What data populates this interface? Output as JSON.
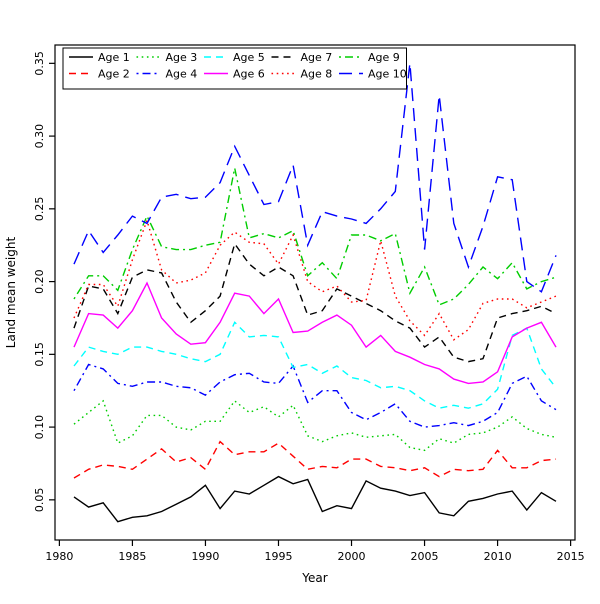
{
  "figure": {
    "background": "#ffffff",
    "axis_color": "#000000"
  },
  "chart_data": {
    "type": "line",
    "title": "",
    "xlabel": "Year",
    "ylabel": "Land mean weight",
    "grid": false,
    "legend_position": "top-left",
    "xlim": [
      1979.7,
      2015.3
    ],
    "ylim": [
      0.0224,
      0.3626
    ],
    "x_ticks": [
      1980,
      1985,
      1990,
      1995,
      2000,
      2005,
      2010,
      2015
    ],
    "y_ticks": [
      0.05,
      0.1,
      0.15,
      0.2,
      0.25,
      0.3,
      0.35
    ],
    "x": [
      1981,
      1982,
      1983,
      1984,
      1985,
      1986,
      1987,
      1988,
      1989,
      1990,
      1991,
      1992,
      1993,
      1994,
      1995,
      1996,
      1997,
      1998,
      1999,
      2000,
      2001,
      2002,
      2003,
      2004,
      2005,
      2006,
      2007,
      2008,
      2009,
      2010,
      2011,
      2012,
      2013,
      2014
    ],
    "series": [
      {
        "name": "Age 1",
        "color": "#000000",
        "dash": "solid",
        "values": [
          0.052,
          0.045,
          0.048,
          0.035,
          0.038,
          0.039,
          0.042,
          0.047,
          0.052,
          0.06,
          0.044,
          0.056,
          0.054,
          0.06,
          0.066,
          0.061,
          0.064,
          0.042,
          0.046,
          0.044,
          0.063,
          0.058,
          0.056,
          0.053,
          0.055,
          0.041,
          0.039,
          0.049,
          0.051,
          0.054,
          0.056,
          0.043,
          0.055,
          0.049
        ]
      },
      {
        "name": "Age 2",
        "color": "#FF0000",
        "dash": "dashed",
        "values": [
          0.065,
          0.071,
          0.074,
          0.073,
          0.071,
          0.078,
          0.085,
          0.076,
          0.079,
          0.071,
          0.09,
          0.081,
          0.083,
          0.083,
          0.089,
          0.08,
          0.071,
          0.073,
          0.072,
          0.078,
          0.078,
          0.073,
          0.072,
          0.07,
          0.072,
          0.066,
          0.071,
          0.07,
          0.071,
          0.084,
          0.072,
          0.072,
          0.077,
          0.078
        ]
      },
      {
        "name": "Age 3",
        "color": "#00CD00",
        "dash": "dotted",
        "values": [
          0.102,
          0.11,
          0.118,
          0.089,
          0.094,
          0.108,
          0.108,
          0.1,
          0.098,
          0.104,
          0.104,
          0.118,
          0.11,
          0.114,
          0.107,
          0.115,
          0.094,
          0.09,
          0.094,
          0.096,
          0.093,
          0.094,
          0.095,
          0.086,
          0.084,
          0.092,
          0.089,
          0.095,
          0.096,
          0.1,
          0.107,
          0.099,
          0.095,
          0.093
        ]
      },
      {
        "name": "Age 4",
        "color": "#0000FF",
        "dash": "dashdot",
        "values": [
          0.125,
          0.143,
          0.14,
          0.13,
          0.128,
          0.131,
          0.131,
          0.128,
          0.127,
          0.122,
          0.131,
          0.136,
          0.137,
          0.131,
          0.13,
          0.142,
          0.117,
          0.125,
          0.125,
          0.11,
          0.105,
          0.11,
          0.116,
          0.104,
          0.1,
          0.101,
          0.103,
          0.101,
          0.104,
          0.11,
          0.13,
          0.135,
          0.118,
          0.112
        ]
      },
      {
        "name": "Age 5",
        "color": "#00FFFF",
        "dash": "dashed",
        "values": [
          0.142,
          0.155,
          0.152,
          0.15,
          0.155,
          0.155,
          0.152,
          0.15,
          0.147,
          0.145,
          0.15,
          0.172,
          0.162,
          0.163,
          0.162,
          0.141,
          0.143,
          0.137,
          0.142,
          0.134,
          0.132,
          0.127,
          0.128,
          0.125,
          0.118,
          0.113,
          0.115,
          0.113,
          0.116,
          0.126,
          0.163,
          0.168,
          0.14,
          0.127
        ]
      },
      {
        "name": "Age 6",
        "color": "#FF00FF",
        "dash": "solid",
        "values": [
          0.155,
          0.178,
          0.177,
          0.168,
          0.18,
          0.199,
          0.175,
          0.164,
          0.157,
          0.158,
          0.172,
          0.192,
          0.19,
          0.178,
          0.188,
          0.165,
          0.166,
          0.172,
          0.177,
          0.17,
          0.155,
          0.163,
          0.152,
          0.148,
          0.143,
          0.14,
          0.133,
          0.13,
          0.131,
          0.138,
          0.162,
          0.168,
          0.172,
          0.155
        ]
      },
      {
        "name": "Age 7",
        "color": "#000000",
        "dash": "dashed",
        "values": [
          0.168,
          0.197,
          0.195,
          0.178,
          0.203,
          0.208,
          0.206,
          0.186,
          0.172,
          0.18,
          0.19,
          0.226,
          0.212,
          0.204,
          0.21,
          0.204,
          0.177,
          0.18,
          0.195,
          0.19,
          0.185,
          0.18,
          0.173,
          0.168,
          0.155,
          0.162,
          0.148,
          0.145,
          0.147,
          0.175,
          0.178,
          0.18,
          0.183,
          0.178
        ]
      },
      {
        "name": "Age 8",
        "color": "#FF0000",
        "dash": "dotted",
        "values": [
          0.175,
          0.198,
          0.198,
          0.183,
          0.215,
          0.242,
          0.208,
          0.199,
          0.201,
          0.206,
          0.225,
          0.234,
          0.227,
          0.226,
          0.212,
          0.232,
          0.2,
          0.193,
          0.197,
          0.186,
          0.187,
          0.228,
          0.19,
          0.173,
          0.163,
          0.178,
          0.16,
          0.167,
          0.185,
          0.188,
          0.188,
          0.182,
          0.186,
          0.19
        ]
      },
      {
        "name": "Age 9",
        "color": "#00CD00",
        "dash": "dashdot",
        "values": [
          0.188,
          0.204,
          0.204,
          0.194,
          0.222,
          0.245,
          0.224,
          0.222,
          0.222,
          0.225,
          0.227,
          0.278,
          0.23,
          0.233,
          0.23,
          0.235,
          0.204,
          0.213,
          0.202,
          0.232,
          0.232,
          0.228,
          0.233,
          0.192,
          0.21,
          0.184,
          0.188,
          0.198,
          0.21,
          0.202,
          0.213,
          0.195,
          0.2,
          0.203
        ]
      },
      {
        "name": "Age 10",
        "color": "#0000FF",
        "dash": "longdash",
        "values": [
          0.212,
          0.235,
          0.22,
          0.232,
          0.245,
          0.24,
          0.258,
          0.26,
          0.257,
          0.258,
          0.268,
          0.293,
          0.273,
          0.253,
          0.255,
          0.28,
          0.225,
          0.248,
          0.245,
          0.243,
          0.24,
          0.25,
          0.262,
          0.35,
          0.222,
          0.328,
          0.24,
          0.21,
          0.238,
          0.272,
          0.27,
          0.2,
          0.193,
          0.218
        ]
      }
    ]
  }
}
